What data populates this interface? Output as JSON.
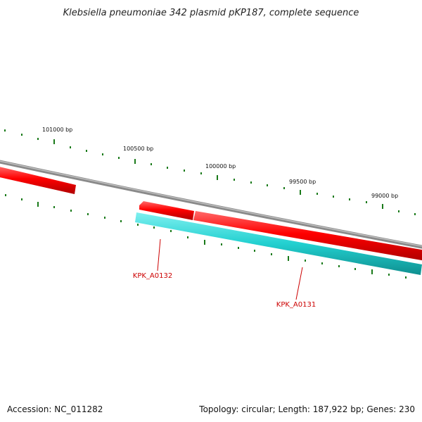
{
  "title": "Klebsiella pneumoniae 342 plasmid pKP187, complete sequence",
  "colors": {
    "backbone": "#808080",
    "forward_gene": "#ff0000",
    "reverse_gene": "#2ad4d4",
    "tick": "#1a7a1a",
    "label": "#cc0000"
  },
  "scale_labels": [
    "101000 bp",
    "100500 bp",
    "100000 bp",
    "99500 bp",
    "99000 bp"
  ],
  "genes": [
    {
      "name": "KPK_A0132",
      "strand": "forward"
    },
    {
      "name": "KPK_A0131",
      "strand": "reverse"
    }
  ],
  "footer": {
    "accession": "Accession: NC_011282",
    "summary": "Topology: circular; Length: 187,922 bp; Genes: 230"
  }
}
